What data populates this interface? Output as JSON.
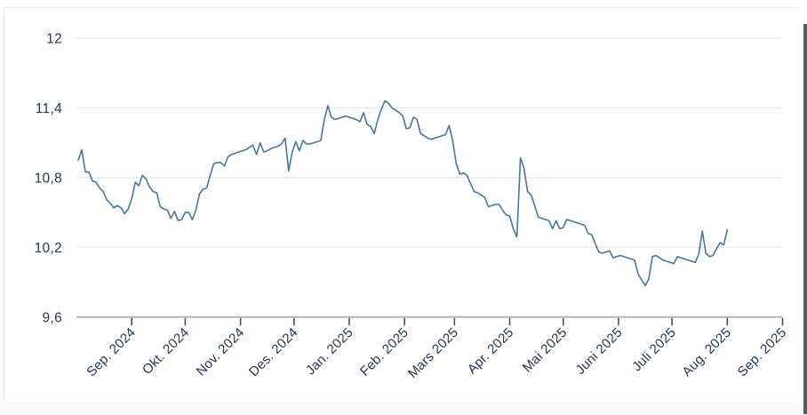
{
  "page": {
    "background": "#ffffff",
    "card_border_color": "#ececec",
    "right_edge_bar_color": "#4d5f5c"
  },
  "chart_data": {
    "type": "line",
    "title": "",
    "legend": "none",
    "grid_on": true,
    "x_axis": {
      "tick_labels": [
        "Sep. 2024",
        "Okt. 2024",
        "Nov. 2024",
        "Des. 2024",
        "Jan. 2025",
        "Feb. 2025",
        "Mars 2025",
        "Apr. 2025",
        "Mai 2025",
        "Juni 2025",
        "Juli 2025",
        "Aug. 2025",
        "Sep. 2025"
      ],
      "tick_day_offsets": [
        30,
        60,
        91,
        121,
        152,
        183,
        211,
        242,
        272,
        303,
        333,
        364,
        395
      ],
      "domain_days": [
        -1,
        395
      ],
      "label_color": "#21375c",
      "axis_line_color": "#b5b5b5",
      "tick_mark_color": "#42506b"
    },
    "y_axis": {
      "tick_labels": [
        "12",
        "11,4",
        "10,8",
        "10,2",
        "9,6"
      ],
      "tick_values": [
        12,
        11.4,
        10.8,
        10.2,
        9.6
      ],
      "range": [
        9.6,
        12
      ],
      "label_color": "#21375c",
      "grid_color": "#e9e9e9"
    },
    "series": [
      {
        "name": "exchange-rate",
        "color": "#4377a7",
        "line_width": 1.6,
        "start_day": 0,
        "day_step": 2,
        "values": [
          10.95,
          11.04,
          10.85,
          10.85,
          10.77,
          10.76,
          10.71,
          10.68,
          10.61,
          10.58,
          10.54,
          10.56,
          10.54,
          10.49,
          10.53,
          10.62,
          10.76,
          10.73,
          10.82,
          10.79,
          10.72,
          10.68,
          10.67,
          10.55,
          10.53,
          10.52,
          10.45,
          10.51,
          10.43,
          10.44,
          10.5,
          10.5,
          10.44,
          10.52,
          10.66,
          10.7,
          10.71,
          10.82,
          10.92,
          10.93,
          10.93,
          10.9,
          10.98,
          11.0,
          11.01,
          11.02,
          11.03,
          11.04,
          11.06,
          11.08,
          11.0,
          11.1,
          11.02,
          11.03,
          11.05,
          11.06,
          11.07,
          11.09,
          11.14,
          10.86,
          11.02,
          11.11,
          11.03,
          11.12,
          11.09,
          11.09,
          11.1,
          11.11,
          11.12,
          11.3,
          11.42,
          11.32,
          11.3,
          11.31,
          11.32,
          11.33,
          11.32,
          11.31,
          11.3,
          11.28,
          11.36,
          11.26,
          11.24,
          11.18,
          11.3,
          11.39,
          11.46,
          11.44,
          11.4,
          11.38,
          11.36,
          11.33,
          11.22,
          11.23,
          11.32,
          11.3,
          11.18,
          11.16,
          11.14,
          11.13,
          11.14,
          11.15,
          11.16,
          11.17,
          11.25,
          11.12,
          10.92,
          10.83,
          10.84,
          10.82,
          10.75,
          10.68,
          10.67,
          10.65,
          10.63,
          10.55,
          10.56,
          10.57,
          10.57,
          10.52,
          10.48,
          10.47,
          10.36,
          10.29,
          10.97,
          10.88,
          10.68,
          10.65,
          10.56,
          10.46,
          10.45,
          10.44,
          10.43,
          10.36,
          10.43,
          10.36,
          10.37,
          10.44,
          10.43,
          10.42,
          10.41,
          10.4,
          10.39,
          10.32,
          10.31,
          10.23,
          10.16,
          10.15,
          10.16,
          10.17,
          10.11,
          10.12,
          10.13,
          10.12,
          10.11,
          10.1,
          10.09,
          9.97,
          9.92,
          9.87,
          9.93,
          10.12,
          10.13,
          10.11,
          10.09,
          10.08,
          10.07,
          10.06,
          10.12,
          10.11,
          10.1,
          10.09,
          10.08,
          10.07,
          10.14,
          10.34,
          10.15,
          10.12,
          10.13,
          10.19,
          10.24,
          10.22,
          10.35
        ]
      }
    ]
  }
}
